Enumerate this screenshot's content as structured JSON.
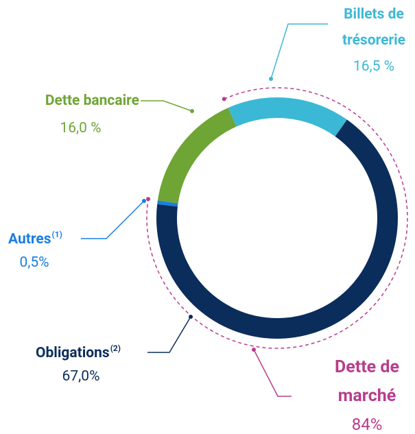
{
  "chart_data": {
    "type": "donut",
    "categories": [
      "Billets de trésorerie",
      "Obligations",
      "Autres",
      "Dette bancaire"
    ],
    "category_notes": [
      null,
      "(2)",
      "(1)",
      null
    ],
    "values": [
      16.5,
      67.0,
      0.5,
      16.0
    ],
    "value_labels": [
      "16,5 %",
      "67,0%",
      "0,5%",
      "16,0 %"
    ],
    "colors": [
      "#3bb8d6",
      "#0b2d5c",
      "#1a7ee0",
      "#6ea534"
    ],
    "group": {
      "name": "Dette de marché",
      "value": 84,
      "value_label": "84%",
      "color": "#b83c8c"
    }
  }
}
